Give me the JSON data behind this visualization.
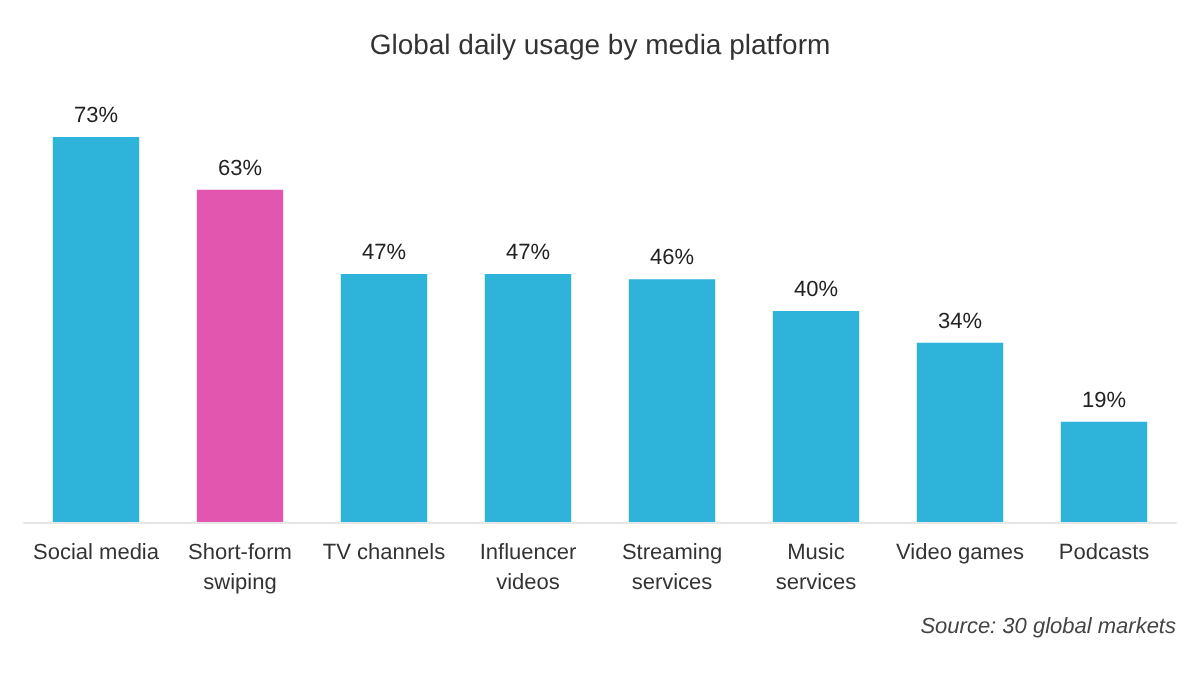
{
  "chart_data": {
    "type": "bar",
    "title": "Global daily usage by media platform",
    "categories": [
      "Social media",
      "Short-form\nswiping",
      "TV channels",
      "Influencer\nvideos",
      "Streaming\nservices",
      "Music\nservices",
      "Video games",
      "Podcasts"
    ],
    "values": [
      73,
      63,
      47,
      47,
      46,
      40,
      34,
      19
    ],
    "value_labels": [
      "73%",
      "63%",
      "47%",
      "47%",
      "46%",
      "40%",
      "34%",
      "19%"
    ],
    "colors": [
      "#2eb4db",
      "#e256b0",
      "#2eb4db",
      "#2eb4db",
      "#2eb4db",
      "#2eb4db",
      "#2eb4db",
      "#2eb4db"
    ],
    "annotations": [
      "Source: 30 global markets"
    ]
  }
}
